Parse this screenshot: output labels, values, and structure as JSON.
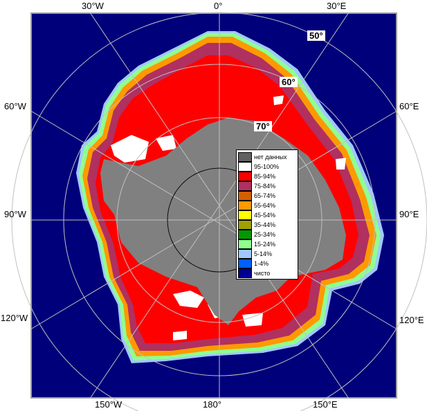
{
  "map": {
    "longitude_labels": {
      "top_left": "30°W",
      "top_center": "0°",
      "top_right": "30°E",
      "upper_left": "60°W",
      "upper_right": "60°E",
      "middle_left": "90°W",
      "middle_right": "90°E",
      "lower_left": "120°W",
      "lower_right": "120°E",
      "bottom_left": "150°W",
      "bottom_center": "180°",
      "bottom_right": "150°E"
    },
    "latitude_labels": {
      "lat50": "50°",
      "lat60": "60°",
      "lat70": "70°"
    },
    "colors": {
      "ocean": "#00007a",
      "land": "#808080",
      "frame": "#a0a0a0",
      "grid": "#c0c0c0"
    }
  },
  "legend": {
    "items": [
      {
        "label": "нет данных",
        "color": "#606060"
      },
      {
        "label": "95-100%",
        "color": "#ffffff"
      },
      {
        "label": "85-94%",
        "color": "#ff0000"
      },
      {
        "label": "75-84%",
        "color": "#b03060"
      },
      {
        "label": "65-74%",
        "color": "#d06000"
      },
      {
        "label": "55-64%",
        "color": "#ff9900"
      },
      {
        "label": "45-54%",
        "color": "#ffff00"
      },
      {
        "label": "35-44%",
        "color": "#a0a000"
      },
      {
        "label": "25-34%",
        "color": "#009900"
      },
      {
        "label": "15-24%",
        "color": "#90ff90"
      },
      {
        "label": "5-14%",
        "color": "#a0c8ff"
      },
      {
        "label": "1-4%",
        "color": "#0060ff"
      },
      {
        "label": "чисто",
        "color": "#000090"
      }
    ]
  }
}
